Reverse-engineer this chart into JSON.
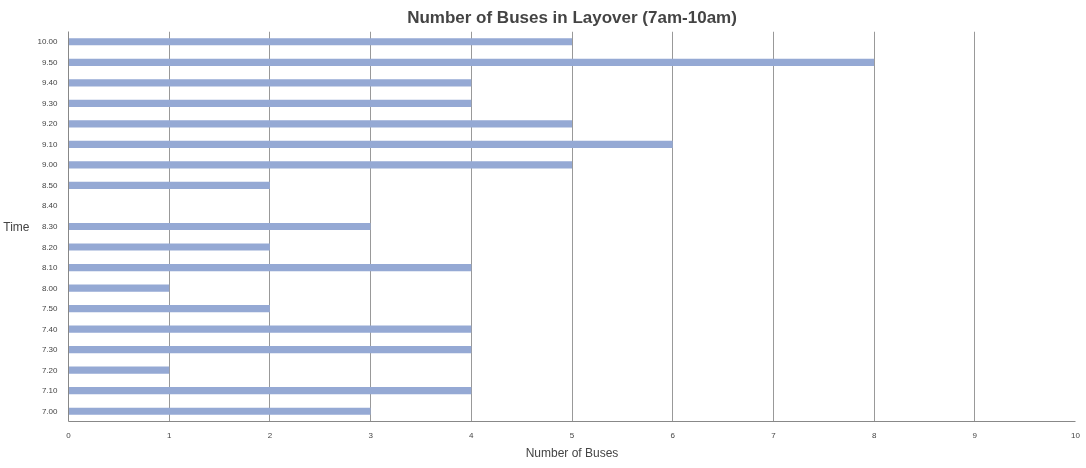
{
  "chart_data": {
    "type": "bar",
    "orientation": "horizontal",
    "title": "Number of Buses in Layover (7am-10am)",
    "xlabel": "Number of Buses",
    "ylabel": "Time",
    "categories": [
      "10.00",
      "9.50",
      "9.40",
      "9.30",
      "9.20",
      "9.10",
      "9.00",
      "8.50",
      "8.40",
      "8.30",
      "8.20",
      "8.10",
      "8.00",
      "7.50",
      "7.40",
      "7.30",
      "7.20",
      "7.10",
      "7.00"
    ],
    "values": [
      5,
      8,
      4,
      4,
      5,
      6,
      5,
      2,
      null,
      3,
      2,
      4,
      1,
      2,
      4,
      4,
      1,
      4,
      3
    ],
    "color": "#95a9d4",
    "xlim": [
      0,
      10
    ],
    "xticks": [
      0,
      1,
      2,
      3,
      4,
      5,
      6,
      7,
      8,
      9,
      10
    ],
    "grid": "x"
  }
}
